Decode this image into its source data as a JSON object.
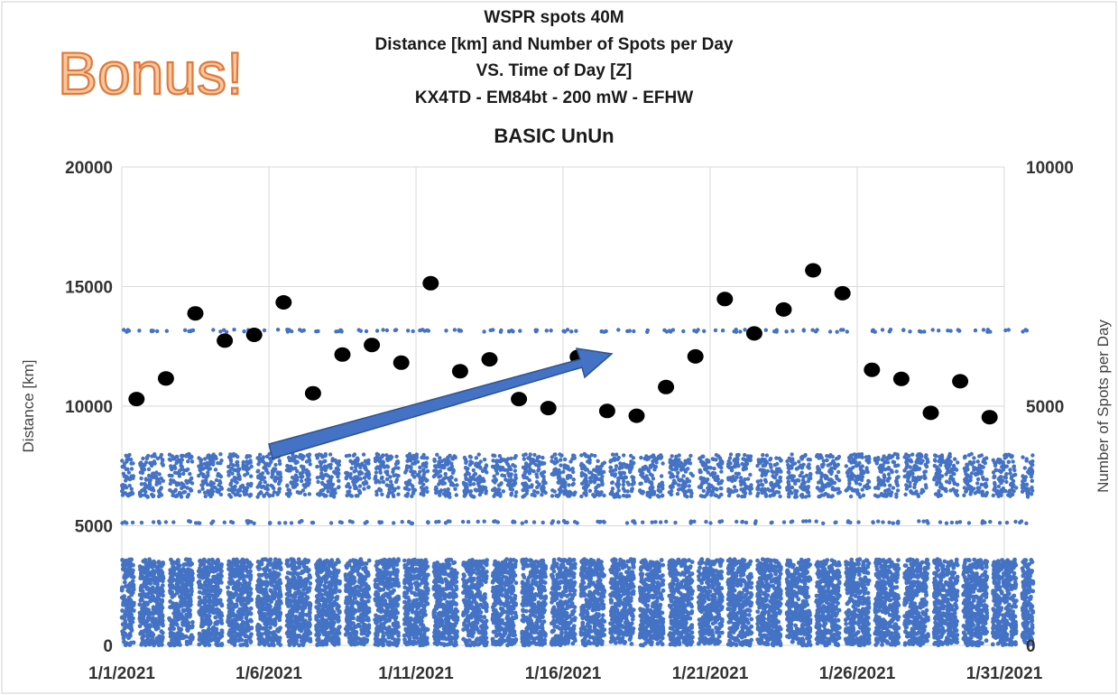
{
  "bonus_text": "Bonus!",
  "colors": {
    "spots": "#4472c4",
    "daily_count": "#000000",
    "arrow_fill": "#4472c4",
    "arrow_stroke": "#2f528f",
    "grid": "#d9d9d9",
    "bonus_fill": "#f6c7a0",
    "bonus_stroke": "#e07a3a"
  },
  "chart_data": {
    "type": "scatter",
    "title_lines": [
      "WSPR spots  40M",
      "Distance [km] and Number of Spots per Day",
      "VS. Time of Day [Z]",
      "KX4TD - EM84bt - 200 mW - EFHW",
      "BASIC UnUn"
    ],
    "xlabel": "",
    "ylabel": "Distance [km]",
    "y2label": "Number of Spots per Day",
    "xlim": [
      "2021-01-01",
      "2021-01-31"
    ],
    "ylim": [
      0,
      20000
    ],
    "y2lim": [
      0,
      10000
    ],
    "x_tick_labels": [
      "1/1/2021",
      "1/6/2021",
      "1/11/2021",
      "1/16/2021",
      "1/21/2021",
      "1/26/2021",
      "1/31/2021"
    ],
    "y_tick_labels": [
      "0",
      "5000",
      "10000",
      "15000",
      "20000"
    ],
    "y2_tick_labels": [
      "0",
      "5000",
      "10000"
    ],
    "grid": true,
    "distance_band_series": {
      "name": "Distance [km]",
      "axis": "left",
      "note_bands_km": [
        [
          0,
          3600
        ],
        [
          5100,
          5200
        ],
        [
          6200,
          8000
        ],
        [
          13100,
          13200
        ]
      ]
    },
    "daily_spots_series": {
      "axis": "right",
      "dates": [
        "2021-01-01",
        "2021-01-02",
        "2021-01-03",
        "2021-01-04",
        "2021-01-05",
        "2021-01-06",
        "2021-01-07",
        "2021-01-08",
        "2021-01-09",
        "2021-01-10",
        "2021-01-11",
        "2021-01-12",
        "2021-01-13",
        "2021-01-14",
        "2021-01-15",
        "2021-01-16",
        "2021-01-17",
        "2021-01-18",
        "2021-01-19",
        "2021-01-20",
        "2021-01-21",
        "2021-01-22",
        "2021-01-23",
        "2021-01-24",
        "2021-01-25",
        "2021-01-26",
        "2021-01-27",
        "2021-01-28",
        "2021-01-29",
        "2021-01-30",
        "2021-01-31"
      ],
      "values": [
        5150,
        5580,
        6940,
        6370,
        6490,
        7170,
        5270,
        6080,
        6280,
        5910,
        7570,
        5730,
        5980,
        5150,
        4960,
        6030,
        4900,
        4800,
        5400,
        6040,
        7240,
        6520,
        7020,
        7840,
        7360,
        5760,
        5570,
        4860,
        5520,
        4770,
        null
      ]
    },
    "annotation": "arrow from 1/6/2021 (~8000 km) rising to about 1/17/2021 (~12000 km)"
  }
}
